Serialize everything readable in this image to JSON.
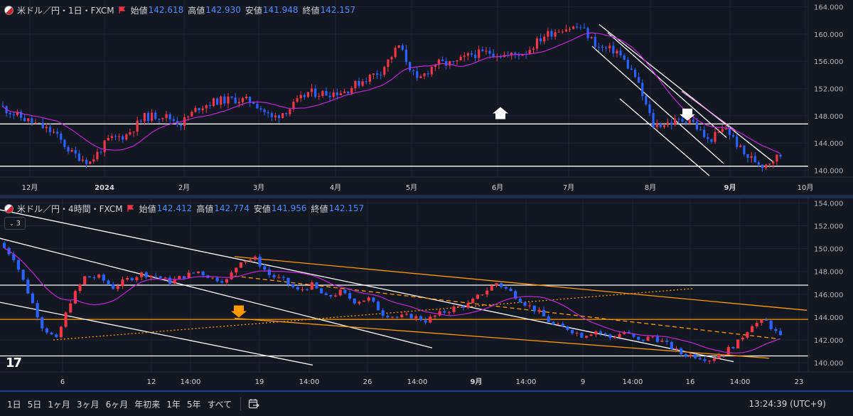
{
  "top_chart": {
    "symbol": "米ドル／円・1日・FXCM",
    "open_label": "始値",
    "open": "142.618",
    "high_label": "高値",
    "high": "142.930",
    "low_label": "安値",
    "low": "141.948",
    "close_label": "終値",
    "close": "142.157",
    "price_ticks": [
      "164.000",
      "160.000",
      "156.000",
      "152.000",
      "148.000",
      "144.000",
      "140.000"
    ],
    "time_ticks": [
      "12月",
      "2024",
      "2月",
      "3月",
      "4月",
      "5月",
      "6月",
      "7月",
      "8月",
      "9月",
      "10月"
    ]
  },
  "bottom_chart": {
    "symbol": "米ドル／円・4時間・FXCM",
    "open_label": "始値",
    "open": "142.412",
    "high_label": "高値",
    "high": "142.774",
    "low_label": "安値",
    "low": "141.956",
    "close_label": "終値",
    "close": "142.157",
    "collapse_count": "3",
    "price_ticks": [
      "154.000",
      "152.000",
      "150.000",
      "148.000",
      "146.000",
      "144.000",
      "142.000",
      "140.000"
    ],
    "time_ticks": [
      "6",
      "12",
      "14:00",
      "19",
      "14:00",
      "26",
      "14:00",
      "9月",
      "14:00",
      "9",
      "14:00",
      "16",
      "14:00",
      "23"
    ]
  },
  "timeframes": [
    "1日",
    "5日",
    "1ヶ月",
    "3ヶ月",
    "6ヶ月",
    "年初来",
    "1年",
    "5年",
    "すべて"
  ],
  "clock": "13:24:39 (UTC+9)",
  "colors": {
    "up": "#f23645",
    "down": "#2962ff",
    "ma": "#c026d3",
    "channel": "#ffffff",
    "orange": "#ff9800",
    "bg": "#131722"
  },
  "chart_data": [
    {
      "type": "candlestick",
      "title": "米ドル／円・1日・FXCM",
      "ylim": [
        139,
        165
      ],
      "levels": [
        146.8,
        140.6
      ],
      "x": [
        "2023-11-20",
        "2023-11-27",
        "2023-12-04",
        "2023-12-11",
        "2023-12-18",
        "2023-12-25",
        "2024-01-02",
        "2024-01-08",
        "2024-01-15",
        "2024-01-22",
        "2024-01-29",
        "2024-02-05",
        "2024-02-12",
        "2024-02-19",
        "2024-02-26",
        "2024-03-04",
        "2024-03-11",
        "2024-03-18",
        "2024-03-25",
        "2024-04-01",
        "2024-04-08",
        "2024-04-15",
        "2024-04-22",
        "2024-04-29",
        "2024-05-06",
        "2024-05-13",
        "2024-05-20",
        "2024-05-27",
        "2024-06-03",
        "2024-06-10",
        "2024-06-17",
        "2024-06-24",
        "2024-07-01",
        "2024-07-08",
        "2024-07-15",
        "2024-07-22",
        "2024-07-29",
        "2024-08-05",
        "2024-08-12",
        "2024-08-19",
        "2024-08-26",
        "2024-09-02",
        "2024-09-09",
        "2024-09-16"
      ],
      "close": [
        149.5,
        148.0,
        146.8,
        145.5,
        142.5,
        141.2,
        144.4,
        145.2,
        147.8,
        148.1,
        146.9,
        149.3,
        150.2,
        150.4,
        150.1,
        147.6,
        149.1,
        151.4,
        151.3,
        151.6,
        153.2,
        154.6,
        158.3,
        153.0,
        155.7,
        155.6,
        157.0,
        157.3,
        156.8,
        157.4,
        159.8,
        160.9,
        161.0,
        158.0,
        157.5,
        153.8,
        146.6,
        147.0,
        147.6,
        144.3,
        146.2,
        142.3,
        140.8,
        142.2
      ],
      "ma_label": "MA"
    },
    {
      "type": "candlestick",
      "title": "米ドル／円・4時間・FXCM",
      "ylim": [
        139.2,
        154.4
      ],
      "levels": [
        146.8,
        143.8,
        140.6
      ],
      "x_ticks": [
        "6",
        "12",
        "14:00",
        "19",
        "14:00",
        "26",
        "14:00",
        "9月",
        "14:00",
        "9",
        "14:00",
        "16",
        "14:00",
        "23"
      ],
      "close": [
        150.5,
        149.2,
        146.2,
        143.2,
        142.0,
        145.4,
        147.5,
        147.5,
        146.6,
        147.3,
        147.8,
        147.6,
        147.1,
        147.6,
        148.0,
        147.4,
        147.2,
        149.0,
        149.1,
        147.7,
        147.2,
        146.3,
        146.8,
        145.7,
        146.2,
        145.4,
        145.6,
        144.3,
        144.0,
        144.1,
        143.7,
        144.3,
        144.8,
        145.1,
        146.1,
        147.0,
        146.2,
        145.2,
        144.4,
        143.3,
        143.0,
        142.4,
        142.8,
        142.2,
        142.7,
        141.9,
        142.3,
        141.6,
        140.8,
        140.6,
        140.3,
        140.9,
        141.8,
        143.4,
        143.6,
        142.2
      ]
    }
  ]
}
